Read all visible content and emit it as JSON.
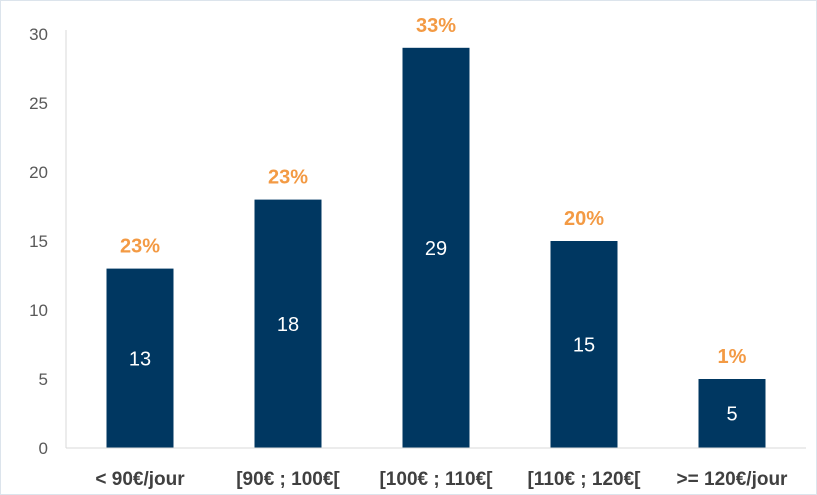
{
  "chart_data": {
    "type": "bar",
    "title": "",
    "xlabel": "",
    "ylabel": "",
    "categories": [
      "< 90€/jour",
      "[90€ ; 100€[",
      "[100€ ; 110€[",
      "[110€ ; 120€[",
      ">= 120€/jour"
    ],
    "values": [
      13,
      18,
      29,
      15,
      5
    ],
    "value_labels": [
      "13",
      "18",
      "29",
      "15",
      "5"
    ],
    "percent_labels": [
      "23%",
      "23%",
      "33%",
      "20%",
      "1%"
    ],
    "ylim": [
      0,
      30
    ],
    "yticks": [
      "0",
      "5",
      "10",
      "15",
      "20",
      "25",
      "30"
    ],
    "grid": false,
    "legend": "none",
    "colors": {
      "bar": "#003761",
      "percent_label": "#f39a44",
      "value_label": "#ffffff"
    }
  }
}
